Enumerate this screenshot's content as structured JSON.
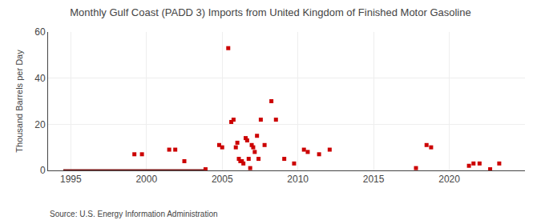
{
  "chart_data": {
    "type": "scatter",
    "title": "Monthly Gulf Coast (PADD 3) Imports from United Kingdom of Finished Motor Gasoline",
    "ylabel": "Thousand Barrels per Day",
    "annotations": [
      "Source: U.S. Energy Information Administration"
    ],
    "series": [
      {
        "type": "scatter",
        "color": "#cc0000",
        "marker": "square",
        "x": [
          1999.2,
          1999.7,
          2001.5,
          2001.9,
          2002.5,
          2003.9,
          2004.8,
          2005.0,
          2005.4,
          2005.6,
          2005.75,
          2005.9,
          2006.0,
          2006.1,
          2006.2,
          2006.3,
          2006.4,
          2006.55,
          2006.65,
          2006.75,
          2006.85,
          2006.95,
          2007.05,
          2007.15,
          2007.3,
          2007.4,
          2007.55,
          2007.8,
          2008.25,
          2008.55,
          2009.1,
          2009.75,
          2010.4,
          2010.65,
          2011.4,
          2012.1,
          2017.8,
          2018.5,
          2018.8,
          2021.3,
          2021.6,
          2022.0,
          2022.7,
          2023.3
        ],
        "values": [
          7,
          7,
          9,
          9,
          4,
          0.5,
          11,
          10,
          53,
          21,
          22,
          10,
          12,
          5,
          4,
          4,
          3,
          14,
          13,
          5,
          1,
          11,
          10,
          8,
          15,
          5,
          22,
          11,
          30,
          22,
          5,
          3,
          9,
          8,
          7,
          9,
          1,
          11,
          10,
          2,
          3,
          3,
          0.5,
          3
        ]
      },
      {
        "type": "line",
        "color": "#7a1a1a",
        "line_style": "solid",
        "x": [
          1994.5,
          2003.8
        ],
        "values": [
          0,
          0
        ]
      }
    ],
    "xlim": [
      1993.5,
      2025
    ],
    "ylim": [
      0,
      60
    ],
    "xticks": [
      1995,
      2000,
      2005,
      2010,
      2015,
      2020
    ],
    "yticks": [
      0,
      20,
      40,
      60
    ],
    "grid": true
  }
}
